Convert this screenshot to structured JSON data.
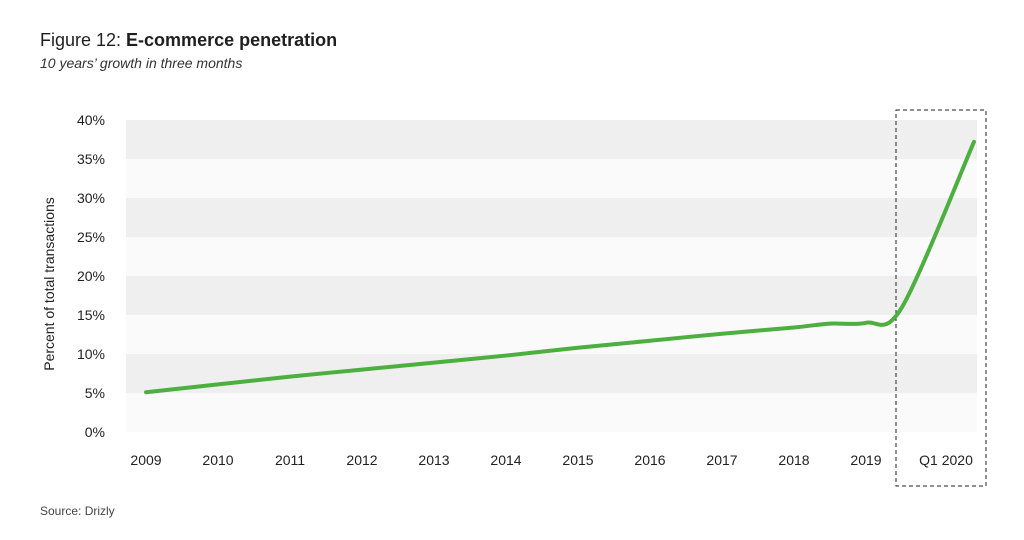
{
  "title_prefix": "Figure 12: ",
  "title_main": "E-commerce penetration",
  "subtitle": "10 years’ growth in three months",
  "source": "Source: Drizly",
  "chart_data": {
    "type": "line",
    "ylabel": "Percent of total transactions",
    "ylim": [
      0,
      40
    ],
    "y_ticks": [
      "0%",
      "5%",
      "10%",
      "15%",
      "20%",
      "25%",
      "30%",
      "35%",
      "40%"
    ],
    "categories": [
      "2009",
      "2010",
      "2011",
      "2012",
      "2013",
      "2014",
      "2015",
      "2016",
      "2017",
      "2018",
      "2019",
      "Q1 2020"
    ],
    "highlight_category": "Q1 2020",
    "grid": "alternating horizontal bands",
    "series": [
      {
        "color": "#4caf3f",
        "points": [
          {
            "x": "2009",
            "y": 5.1
          },
          {
            "x": "2010",
            "y": 6.1
          },
          {
            "x": "2011",
            "y": 7.1
          },
          {
            "x": "2012",
            "y": 8.0
          },
          {
            "x": "2013",
            "y": 8.9
          },
          {
            "x": "2014",
            "y": 9.8
          },
          {
            "x": "2015",
            "y": 10.8
          },
          {
            "x": "2016",
            "y": 11.7
          },
          {
            "x": "2017",
            "y": 12.6
          },
          {
            "x": "2018",
            "y": 13.4
          },
          {
            "x": "2018.5",
            "y": 13.9
          },
          {
            "x": "2019",
            "y": 14.0
          },
          {
            "x": "2019.5",
            "y": 16.0
          },
          {
            "x": "Q1 2020",
            "y": 37.2
          }
        ]
      }
    ]
  }
}
